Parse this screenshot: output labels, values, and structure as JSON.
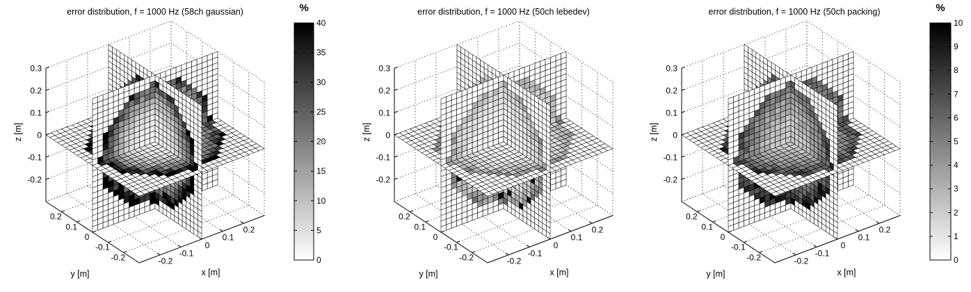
{
  "chart_data": {
    "type": "heatmap",
    "subtype": "3d-orthogonal-slice-planes",
    "description": "Three MATLAB-style 3D slice plots (planes x=0, y=0, z=0) showing reproduction error in percent inside a spherical listening region; grayscale colormap, white=0 error, black=max.",
    "view": {
      "azimuth_deg": -37.5,
      "elevation_deg": 30,
      "grid": "dotted"
    },
    "axes": {
      "xlabel": "x [m]",
      "ylabel": "y [m]",
      "zlabel": "z [m]",
      "xlim": [
        -0.3,
        0.3
      ],
      "ylim": [
        -0.3,
        0.3
      ],
      "zlim": [
        -0.3,
        0.3
      ],
      "xticks": [
        -0.2,
        -0.1,
        0,
        0.1,
        0.2
      ],
      "xtick_labels": [
        "-0.2",
        "-0.1",
        "0",
        "0.1",
        "0.2"
      ],
      "yticks": [
        0.2,
        0.1,
        0,
        -0.1,
        -0.2
      ],
      "ytick_labels": [
        "0.2",
        "0.1",
        "0",
        "-0.1",
        "-0.2"
      ],
      "zticks": [
        0.3,
        0.2,
        0.1,
        0,
        -0.1,
        -0.2
      ],
      "ztick_labels": [
        "0.3",
        "0.2",
        "0.1",
        "0",
        "-0.1",
        "-0.2"
      ],
      "grid_lines": [
        -0.3,
        -0.2,
        -0.1,
        0,
        0.1,
        0.2,
        0.3
      ],
      "slice_planes": [
        "x=0",
        "y=0",
        "z=0"
      ],
      "grid_step_m": 0.025
    },
    "panels": [
      {
        "key": "58ch-gaussian",
        "title": "error distribution, f = 1000 Hz (58ch gaussian)",
        "config": "58ch gaussian",
        "frequency_label": "f = 1000 Hz",
        "colorbar": {
          "show": true,
          "unit": "%",
          "min": 0,
          "max": 40,
          "ticks": [
            0,
            5,
            10,
            15,
            20,
            25,
            30,
            35,
            40
          ],
          "tick_labels": [
            "0",
            "5",
            "10",
            "15",
            "20",
            "25",
            "30",
            "35",
            "40"
          ]
        },
        "error_field": {
          "kind": "radial",
          "region_radius_m": 0.265,
          "vmax_pct": 40,
          "base_pct": 2.0,
          "scale_pct": 38.0,
          "exponent": 3.2,
          "noise": 0.22,
          "z_asymmetry": 0.25,
          "xy_asymmetry": 0.25,
          "spike_probability": 0.05,
          "spike_value_pct": 39.5
        }
      },
      {
        "key": "50ch-lebedev",
        "title": "error distribution, f = 1000 Hz (50ch lebedev)",
        "config": "50ch lebedev",
        "frequency_label": "f = 1000 Hz",
        "colorbar": {
          "show": false
        },
        "error_field": {
          "kind": "radial",
          "region_radius_m": 0.265,
          "vmax_pct": 10,
          "base_pct": 0.4,
          "scale_pct": 3.8,
          "exponent": 4.0,
          "noise": 0.35,
          "z_asymmetry": 0.4,
          "xy_asymmetry": 0.1,
          "spike_probability": 0.1,
          "spike_value_pct": 9.6
        }
      },
      {
        "key": "50ch-packing",
        "title": "error distribution, f = 1000 Hz (50ch packing)",
        "config": "50ch packing",
        "frequency_label": "f = 1000 Hz",
        "colorbar": {
          "show": true,
          "unit": "%",
          "min": 0,
          "max": 10,
          "ticks": [
            0,
            1,
            2,
            3,
            4,
            5,
            6,
            7,
            8,
            9,
            10
          ],
          "tick_labels": [
            "0",
            "1",
            "2",
            "3",
            "4",
            "5",
            "6",
            "7",
            "8",
            "9",
            "10"
          ]
        },
        "error_field": {
          "kind": "radial",
          "region_radius_m": 0.265,
          "vmax_pct": 10,
          "base_pct": 2.0,
          "scale_pct": 5.6,
          "exponent": 2.3,
          "noise": 0.18,
          "z_asymmetry": 0.25,
          "xy_asymmetry": 0.12,
          "spike_probability": 0.08,
          "spike_value_pct": 9.4
        }
      }
    ]
  }
}
